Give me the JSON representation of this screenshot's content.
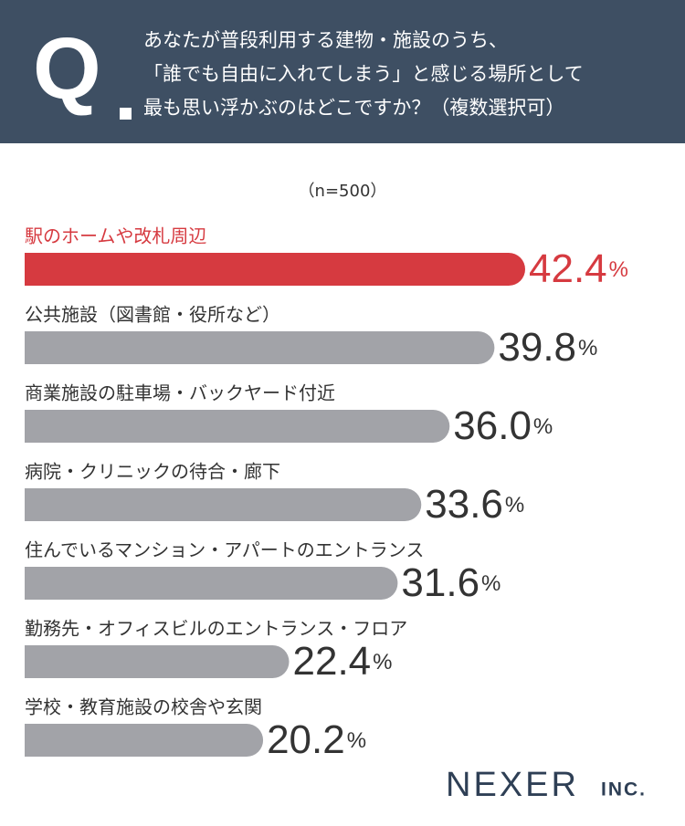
{
  "header": {
    "mark": "Q",
    "lines": [
      "あなたが普段利用する建物・施設のうち、",
      "「誰でも自由に入れてしまう」と感じる場所として",
      "最も思い浮かぶのはどこですか？（複数選択可）"
    ]
  },
  "chart_data": {
    "type": "bar",
    "orientation": "horizontal",
    "subtitle": "（n=500）",
    "categories": [
      "駅のホームや改札周辺",
      "公共施設（図書館・役所など）",
      "商業施設の駐車場・バックヤード付近",
      "病院・クリニックの待合・廊下",
      "住んでいるマンション・アパートのエントランス",
      "勤務先・オフィスビルのエントランス・フロア",
      "学校・教育施設の校舎や玄関"
    ],
    "values": [
      42.4,
      39.8,
      36.0,
      33.6,
      31.6,
      22.4,
      20.2
    ],
    "value_labels": [
      "42.4",
      "39.8",
      "36.0",
      "33.6",
      "31.6",
      "22.4",
      "20.2"
    ],
    "unit": "%",
    "color": "#a2a3a8",
    "highlight_color": "#d63a40",
    "highlight_index": 0
  },
  "footer": {
    "logo": "NEXER",
    "logo_suffix": "INC."
  }
}
